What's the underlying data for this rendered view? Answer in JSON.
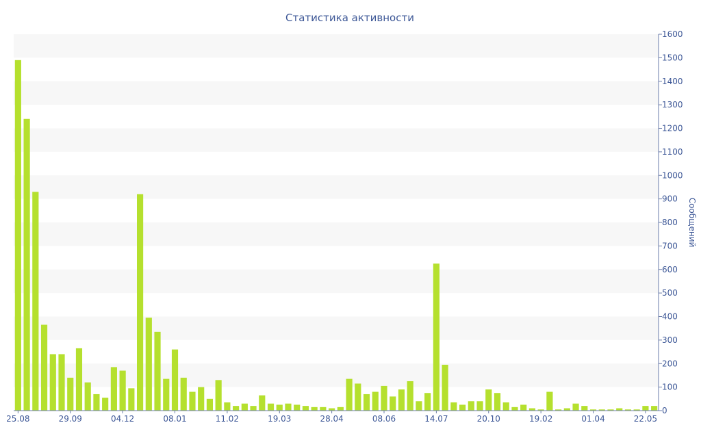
{
  "chart_data": {
    "type": "bar",
    "title": "Статистика активности",
    "xlabel": "",
    "ylabel": "Сообщений",
    "ylim": [
      0,
      1600
    ],
    "y_ticks": [
      "0",
      "100",
      "200",
      "300",
      "400",
      "500",
      "600",
      "700",
      "800",
      "900",
      "1000",
      "1100",
      "1200",
      "1300",
      "1400",
      "1500",
      "1600"
    ],
    "x_tick_labels": [
      "25.08",
      "29.09",
      "04.12",
      "08.01",
      "11.02",
      "19.03",
      "28.04",
      "08.06",
      "14.07",
      "20.10",
      "19.02",
      "01.04",
      "22.05"
    ],
    "grid": "horizontal alternating bands",
    "y_axis_position": "right",
    "colors": {
      "bar": "#b5e02e",
      "text": "#3e5897",
      "band": "#f7f7f7"
    },
    "series": [
      {
        "values": [
          1490,
          1240,
          930,
          365,
          240,
          240,
          140,
          265,
          120,
          70,
          55,
          185,
          170,
          95,
          920,
          395,
          335,
          135,
          260,
          140,
          80,
          100,
          50,
          130,
          35,
          20,
          30,
          20,
          65,
          30,
          25,
          30,
          25,
          20,
          15,
          15,
          10,
          15,
          135,
          115,
          70,
          80,
          105,
          60,
          90,
          125,
          40,
          75,
          625,
          195,
          35,
          25,
          40,
          40,
          90,
          75,
          35,
          15,
          25,
          10,
          5,
          80,
          5,
          10,
          30,
          20,
          5,
          5,
          5,
          10,
          5,
          5,
          20,
          20
        ]
      }
    ]
  }
}
